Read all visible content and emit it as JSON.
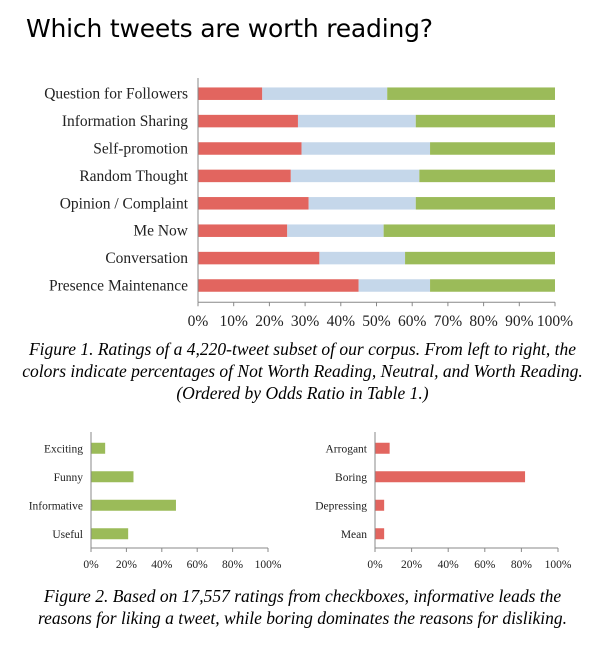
{
  "title": "Which tweets are worth reading?",
  "captions": {
    "figure1": "Figure 1. Ratings of a 4,220-tweet subset of our corpus. From left to right, the colors indicate percentages of Not Worth Reading, Neutral, and Worth Reading. (Ordered by Odds Ratio in Table 1.)",
    "figure2": "Figure 2. Based on 17,557 ratings from checkboxes, informative leads the reasons for liking a tweet, while boring dominates the reasons for disliking."
  },
  "colors": {
    "red": "#e2655f",
    "blue": "#c5d7ea",
    "green": "#9bbb59",
    "axis": "#888888"
  },
  "chart_data": [
    {
      "type": "bar",
      "stacked": true,
      "orientation": "horizontal",
      "categories": [
        "Question for Followers",
        "Information Sharing",
        "Self-promotion",
        "Random Thought",
        "Opinion / Complaint",
        "Me Now",
        "Conversation",
        "Presence Maintenance"
      ],
      "series": [
        {
          "color": "#e2655f",
          "values": [
            18,
            28,
            29,
            26,
            31,
            25,
            34,
            45
          ]
        },
        {
          "color": "#c5d7ea",
          "values": [
            35,
            33,
            36,
            36,
            30,
            27,
            24,
            20
          ]
        },
        {
          "color": "#9bbb59",
          "values": [
            47,
            39,
            35,
            38,
            39,
            48,
            42,
            35
          ]
        }
      ],
      "xlim": [
        0,
        100
      ],
      "xticks": [
        "0%",
        "10%",
        "20%",
        "30%",
        "40%",
        "50%",
        "60%",
        "70%",
        "80%",
        "90%",
        "100%"
      ],
      "grid": false
    },
    {
      "type": "bar",
      "orientation": "horizontal",
      "categories": [
        "Exciting",
        "Funny",
        "Informative",
        "Useful"
      ],
      "values": [
        8,
        24,
        48,
        21
      ],
      "color": "#9bbb59",
      "xlim": [
        0,
        100
      ],
      "xticks": [
        "0%",
        "20%",
        "40%",
        "60%",
        "80%",
        "100%"
      ],
      "grid": false
    },
    {
      "type": "bar",
      "orientation": "horizontal",
      "categories": [
        "Arrogant",
        "Boring",
        "Depressing",
        "Mean"
      ],
      "values": [
        8,
        82,
        5,
        5
      ],
      "color": "#e2655f",
      "xlim": [
        0,
        100
      ],
      "xticks": [
        "0%",
        "20%",
        "40%",
        "60%",
        "80%",
        "100%"
      ],
      "grid": false
    }
  ]
}
